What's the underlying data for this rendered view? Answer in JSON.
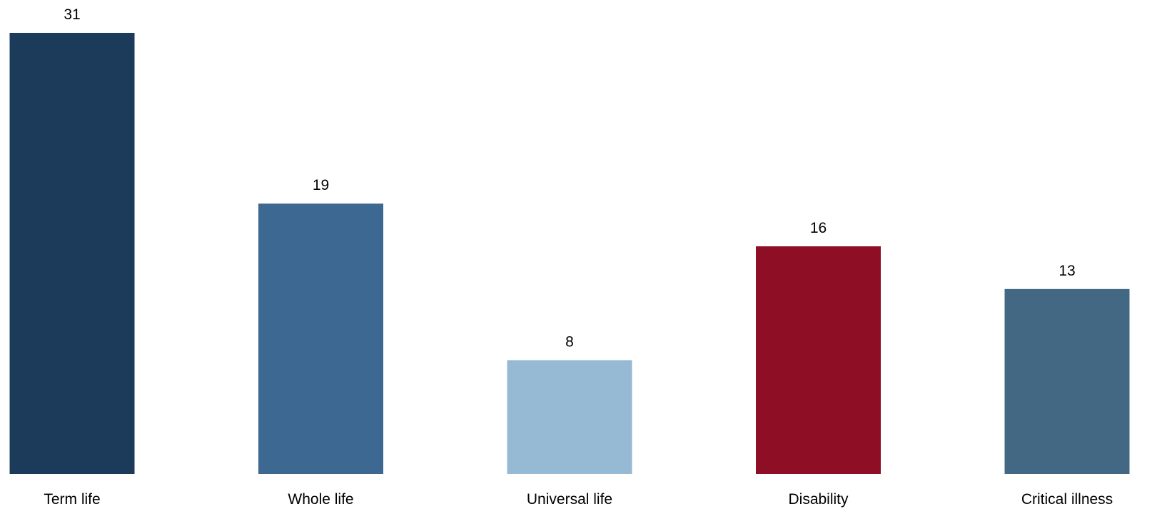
{
  "chart_data": {
    "type": "bar",
    "title": "",
    "xlabel": "",
    "ylabel": "",
    "categories": [
      "Term life",
      "Whole life",
      "Universal life",
      "Disability",
      "Critical illness"
    ],
    "values": [
      31,
      19,
      8,
      16,
      13
    ],
    "colors": [
      "#1c3a5a",
      "#3c6891",
      "#96b9d4",
      "#8e0f25",
      "#436884"
    ],
    "ylim": [
      0,
      31
    ],
    "grid": false,
    "legend": "none",
    "data_labels": true
  }
}
